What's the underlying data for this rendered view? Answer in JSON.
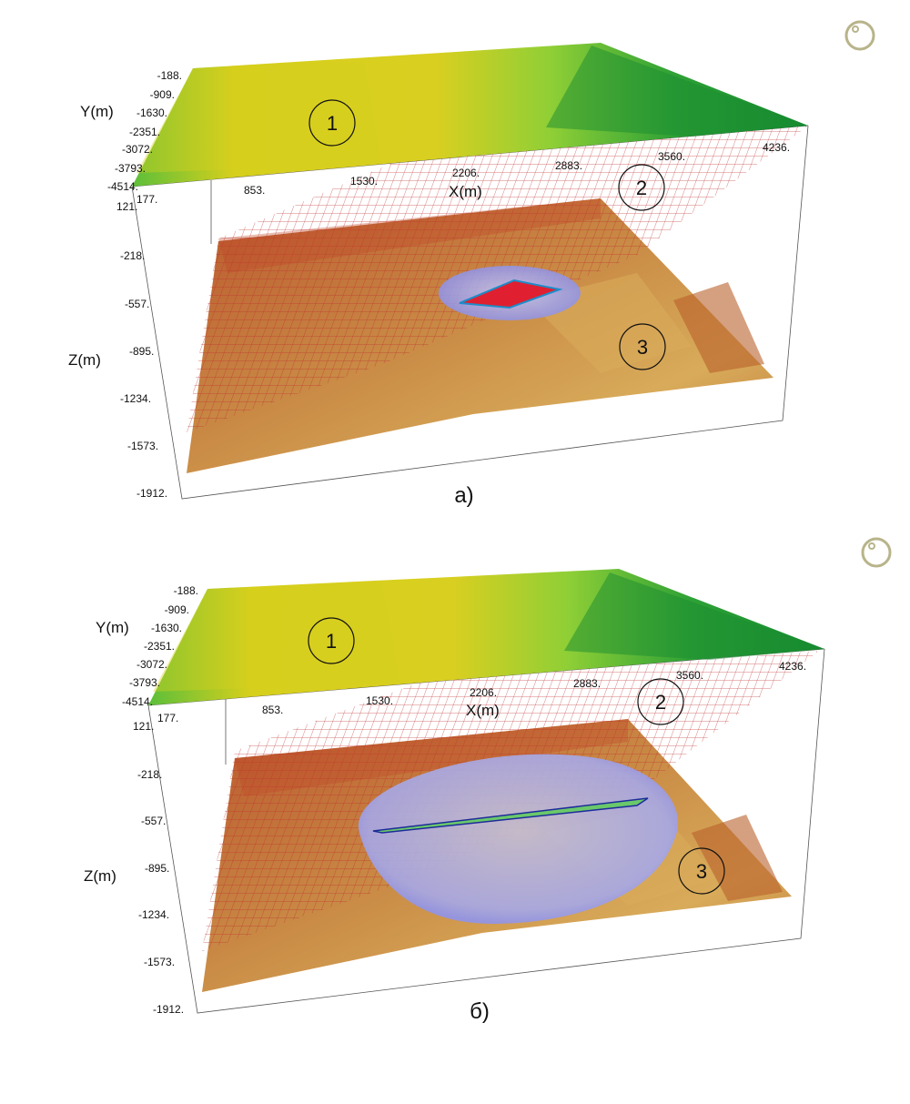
{
  "panels": [
    {
      "id": "a",
      "caption": "а)",
      "y_axis": {
        "label": "Y(m)",
        "ticks": [
          "-188.",
          "-909.",
          "-1630.",
          "-2351.",
          "-3072.",
          "-3793.",
          "-4514."
        ]
      },
      "x_axis": {
        "label": "X(m)",
        "ticks": [
          "177.",
          "853.",
          "1530.",
          "2206.",
          "2883.",
          "3560.",
          "4236."
        ]
      },
      "z_axis": {
        "label": "Z(m)",
        "ticks": [
          "121.",
          "-218.",
          "-557.",
          "-895.",
          "-1234.",
          "-1573.",
          "-1912."
        ]
      },
      "markers": [
        "1",
        "2",
        "3"
      ]
    },
    {
      "id": "b",
      "caption": "б)",
      "y_axis": {
        "label": "Y(m)",
        "ticks": [
          "-188.",
          "-909.",
          "-1630.",
          "-2351.",
          "-3072.",
          "-3793.",
          "-4514."
        ]
      },
      "x_axis": {
        "label": "X(m)",
        "ticks": [
          "177.",
          "853.",
          "1530.",
          "2206.",
          "2883.",
          "3560.",
          "4236."
        ]
      },
      "z_axis": {
        "label": "Z(m)",
        "ticks": [
          "121.",
          "-218.",
          "-557.",
          "-895.",
          "-1234.",
          "-1573.",
          "-1912."
        ]
      },
      "markers": [
        "1",
        "2",
        "3"
      ]
    }
  ],
  "colors": {
    "top_surface": [
      "#2e9e2e",
      "#6cc23a",
      "#a8d22a",
      "#d8d020"
    ],
    "fault_mesh": "#c03030",
    "bottom_surface": [
      "#b8502a",
      "#c9803a",
      "#d9aa55"
    ],
    "ellipsoid": "#9a9ef0",
    "core": "#e02020"
  },
  "icons": [
    "orientation-icon"
  ]
}
